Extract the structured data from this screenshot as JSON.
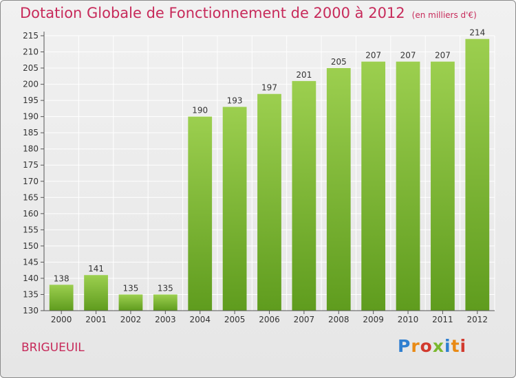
{
  "chart_data": {
    "type": "bar",
    "title": "Dotation Globale de Fonctionnement de 2000 à 2012",
    "unit_label": "(en milliers d'€)",
    "categories": [
      "2000",
      "2001",
      "2002",
      "2003",
      "2004",
      "2005",
      "2006",
      "2007",
      "2008",
      "2009",
      "2010",
      "2011",
      "2012"
    ],
    "values": [
      138,
      141,
      135,
      135,
      190,
      193,
      197,
      201,
      205,
      207,
      207,
      207,
      214
    ],
    "ylim": [
      130,
      215
    ],
    "yticks": [
      130,
      135,
      140,
      145,
      150,
      155,
      160,
      165,
      170,
      175,
      180,
      185,
      190,
      195,
      200,
      205,
      210,
      215
    ],
    "grid": true,
    "bar_color": "#7dbb33"
  },
  "commune": "BRIGUEUIL",
  "logo": {
    "letters": [
      "P",
      "r",
      "o",
      "x",
      "i",
      "t",
      "i"
    ]
  }
}
